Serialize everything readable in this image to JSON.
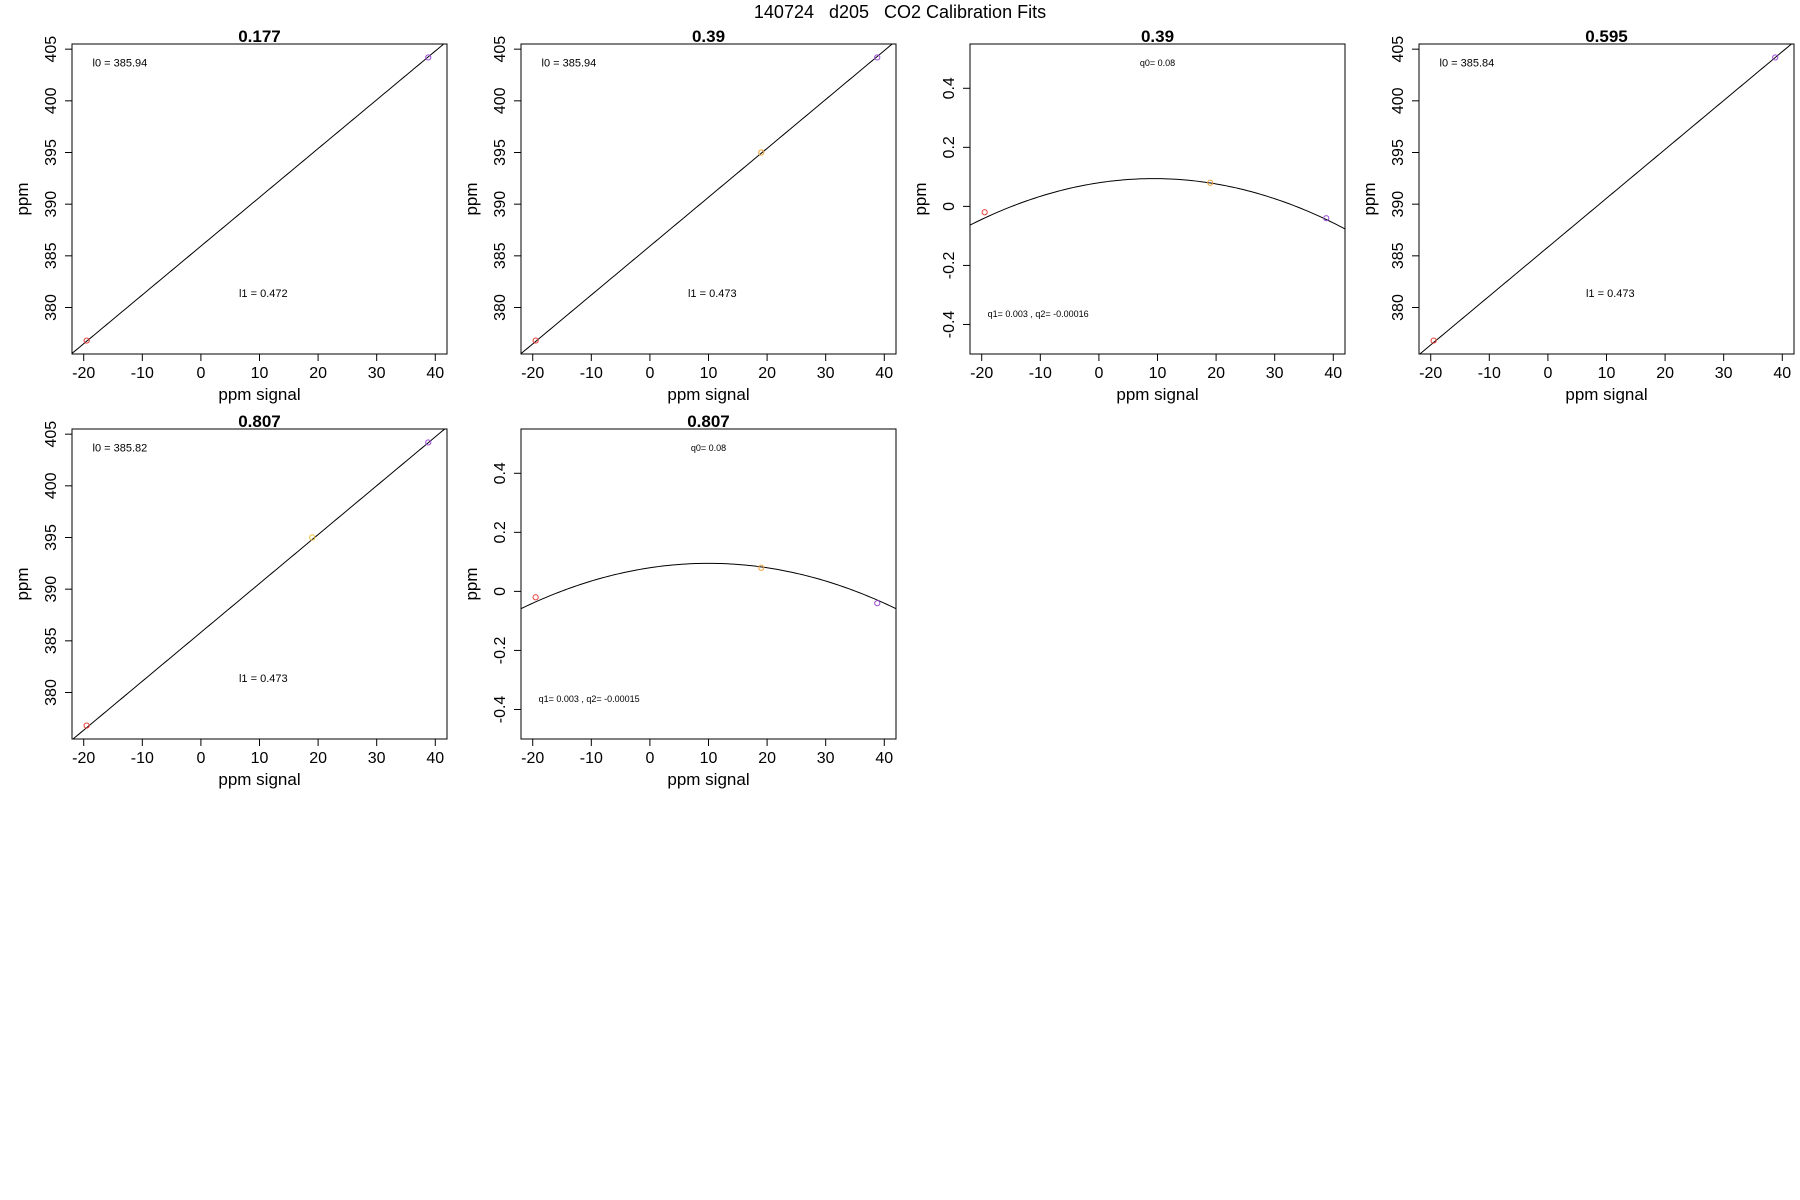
{
  "page_title": "140724   d205   CO2 Calibration Fits",
  "chart_data": [
    {
      "type": "line",
      "title": "0.177",
      "xlabel": "ppm signal",
      "ylabel": "ppm",
      "xlim": [
        -22,
        42
      ],
      "ylim": [
        375.5,
        405.5
      ],
      "xticks": [
        -20,
        -10,
        0,
        10,
        20,
        30,
        40
      ],
      "yticks": [
        380,
        385,
        390,
        395,
        400,
        405
      ],
      "fit": {
        "kind": "linear",
        "intercept": 385.94,
        "slope": 0.472
      },
      "points": [
        {
          "x": -19.5,
          "y": 376.8,
          "color": "#e8413a"
        },
        {
          "x": 38.8,
          "y": 404.2,
          "color": "#9b4fd6"
        }
      ],
      "annotations": [
        {
          "text": "l0 =  385.94",
          "x": -18.5,
          "y": 403.3
        },
        {
          "text": "l1 =  0.472",
          "x": 6.5,
          "y": 381.0
        }
      ]
    },
    {
      "type": "line",
      "title": "0.39",
      "xlabel": "ppm signal",
      "ylabel": "ppm",
      "xlim": [
        -22,
        42
      ],
      "ylim": [
        375.5,
        405.5
      ],
      "xticks": [
        -20,
        -10,
        0,
        10,
        20,
        30,
        40
      ],
      "yticks": [
        380,
        385,
        390,
        395,
        400,
        405
      ],
      "fit": {
        "kind": "linear",
        "intercept": 385.94,
        "slope": 0.473
      },
      "points": [
        {
          "x": -19.5,
          "y": 376.8,
          "color": "#e8413a"
        },
        {
          "x": 19.0,
          "y": 395.0,
          "color": "#f0a33a"
        },
        {
          "x": 38.8,
          "y": 404.2,
          "color": "#9b4fd6"
        }
      ],
      "annotations": [
        {
          "text": "l0 =  385.94",
          "x": -18.5,
          "y": 403.3
        },
        {
          "text": "l1 =  0.473",
          "x": 6.5,
          "y": 381.0
        }
      ]
    },
    {
      "type": "line",
      "title": "0.39",
      "xlabel": "ppm signal",
      "ylabel": "ppm",
      "xlim": [
        -22,
        42
      ],
      "ylim": [
        -0.5,
        0.55
      ],
      "xticks": [
        -20,
        -10,
        0,
        10,
        20,
        30,
        40
      ],
      "yticks": [
        -0.4,
        -0.2,
        0.0,
        0.2,
        0.4
      ],
      "fit": {
        "kind": "quadratic",
        "q0": 0.08,
        "q1": 0.003,
        "q2": -0.00016
      },
      "points": [
        {
          "x": -19.5,
          "y": -0.02,
          "color": "#e8413a"
        },
        {
          "x": 19.0,
          "y": 0.08,
          "color": "#f0a33a"
        },
        {
          "x": 38.8,
          "y": -0.04,
          "color": "#9b4fd6"
        }
      ],
      "annotations": [
        {
          "text": "q0= 0.08",
          "x": 10,
          "y": 0.475,
          "small": true,
          "anchor": "middle"
        },
        {
          "text": "q1= 0.003 , q2= -0.00016",
          "x": -19,
          "y": -0.375,
          "small": true
        }
      ]
    },
    {
      "type": "line",
      "title": "0.595",
      "xlabel": "ppm signal",
      "ylabel": "ppm",
      "xlim": [
        -22,
        42
      ],
      "ylim": [
        375.5,
        405.5
      ],
      "xticks": [
        -20,
        -10,
        0,
        10,
        20,
        30,
        40
      ],
      "yticks": [
        380,
        385,
        390,
        395,
        400,
        405
      ],
      "fit": {
        "kind": "linear",
        "intercept": 385.84,
        "slope": 0.473
      },
      "points": [
        {
          "x": -19.5,
          "y": 376.8,
          "color": "#e8413a"
        },
        {
          "x": 38.8,
          "y": 404.2,
          "color": "#9b4fd6"
        }
      ],
      "annotations": [
        {
          "text": "l0 =  385.84",
          "x": -18.5,
          "y": 403.3
        },
        {
          "text": "l1 =  0.473",
          "x": 6.5,
          "y": 381.0
        }
      ]
    },
    {
      "type": "line",
      "title": "0.807",
      "xlabel": "ppm signal",
      "ylabel": "ppm",
      "xlim": [
        -22,
        42
      ],
      "ylim": [
        375.5,
        405.5
      ],
      "xticks": [
        -20,
        -10,
        0,
        10,
        20,
        30,
        40
      ],
      "yticks": [
        380,
        385,
        390,
        395,
        400,
        405
      ],
      "fit": {
        "kind": "linear",
        "intercept": 385.82,
        "slope": 0.473
      },
      "points": [
        {
          "x": -19.5,
          "y": 376.8,
          "color": "#e8413a"
        },
        {
          "x": 19.0,
          "y": 395.0,
          "color": "#f0c23a"
        },
        {
          "x": 38.8,
          "y": 404.2,
          "color": "#9b4fd6"
        }
      ],
      "annotations": [
        {
          "text": "l0 =  385.82",
          "x": -18.5,
          "y": 403.3
        },
        {
          "text": "l1 =  0.473",
          "x": 6.5,
          "y": 381.0
        }
      ]
    },
    {
      "type": "line",
      "title": "0.807",
      "xlabel": "ppm signal",
      "ylabel": "ppm",
      "xlim": [
        -22,
        42
      ],
      "ylim": [
        -0.5,
        0.55
      ],
      "xticks": [
        -20,
        -10,
        0,
        10,
        20,
        30,
        40
      ],
      "yticks": [
        -0.4,
        -0.2,
        0.0,
        0.2,
        0.4
      ],
      "fit": {
        "kind": "quadratic",
        "q0": 0.08,
        "q1": 0.003,
        "q2": -0.00015
      },
      "points": [
        {
          "x": -19.5,
          "y": -0.02,
          "color": "#e8413a"
        },
        {
          "x": 19.0,
          "y": 0.08,
          "color": "#f0a33a"
        },
        {
          "x": 38.8,
          "y": -0.04,
          "color": "#9b4fd6"
        }
      ],
      "annotations": [
        {
          "text": "q0= 0.08",
          "x": 10,
          "y": 0.475,
          "small": true,
          "anchor": "middle"
        },
        {
          "text": "q1= 0.003 , q2= -0.00015",
          "x": -19,
          "y": -0.375,
          "small": true
        }
      ]
    }
  ]
}
